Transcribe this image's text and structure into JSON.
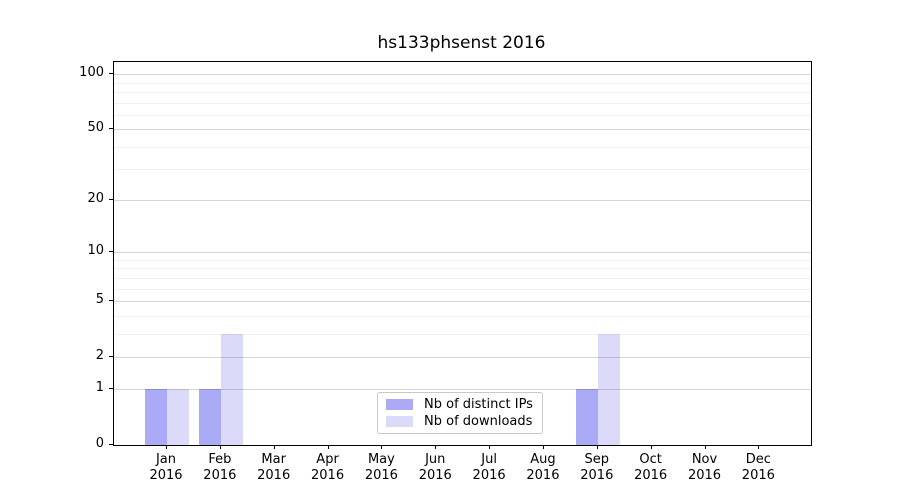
{
  "title": "hs133phsenst 2016",
  "colors": {
    "distinct_ips_bar": "#aaaaf7",
    "downloads_bar": "#dbdaf8",
    "grid_major": "rgba(0,0,0,0.16)",
    "grid_minor": "rgba(0,0,0,0.055)",
    "axis": "#000000"
  },
  "legend": {
    "items": [
      {
        "label": "Nb of distinct IPs",
        "color": "#aaaaf7"
      },
      {
        "label": "Nb of downloads",
        "color": "#dbdaf8"
      }
    ]
  },
  "x_axis": {
    "ticks": [
      {
        "month": "Jan",
        "year": "2016"
      },
      {
        "month": "Feb",
        "year": "2016"
      },
      {
        "month": "Mar",
        "year": "2016"
      },
      {
        "month": "Apr",
        "year": "2016"
      },
      {
        "month": "May",
        "year": "2016"
      },
      {
        "month": "Jun",
        "year": "2016"
      },
      {
        "month": "Jul",
        "year": "2016"
      },
      {
        "month": "Aug",
        "year": "2016"
      },
      {
        "month": "Sep",
        "year": "2016"
      },
      {
        "month": "Oct",
        "year": "2016"
      },
      {
        "month": "Nov",
        "year": "2016"
      },
      {
        "month": "Dec",
        "year": "2016"
      }
    ]
  },
  "y_axis": {
    "tick_labels": [
      "0",
      "1",
      "2",
      "5",
      "10",
      "20",
      "50",
      "100"
    ]
  },
  "chart_data": {
    "type": "bar",
    "title": "hs133phsenst 2016",
    "categories": [
      "Jan 2016",
      "Feb 2016",
      "Mar 2016",
      "Apr 2016",
      "May 2016",
      "Jun 2016",
      "Jul 2016",
      "Aug 2016",
      "Sep 2016",
      "Oct 2016",
      "Nov 2016",
      "Dec 2016"
    ],
    "series": [
      {
        "name": "Nb of distinct IPs",
        "color": "#aaaaf7",
        "values": [
          1,
          1,
          0,
          0,
          0,
          0,
          0,
          0,
          1,
          0,
          0,
          0
        ]
      },
      {
        "name": "Nb of downloads",
        "color": "#dbdaf8",
        "values": [
          1,
          3,
          0,
          0,
          0,
          0,
          0,
          0,
          3,
          0,
          0,
          0
        ]
      }
    ],
    "yscale": "log1p",
    "yticks": [
      0,
      1,
      2,
      5,
      10,
      20,
      50,
      100
    ],
    "major_gridlines": [
      1,
      2,
      5,
      10,
      20,
      50,
      100
    ],
    "minor_gridlines": [
      3,
      4,
      6,
      7,
      8,
      9,
      30,
      40,
      60,
      70,
      80,
      90
    ],
    "ylim": [
      0,
      117
    ],
    "grid": true,
    "legend_position": "lower center"
  }
}
